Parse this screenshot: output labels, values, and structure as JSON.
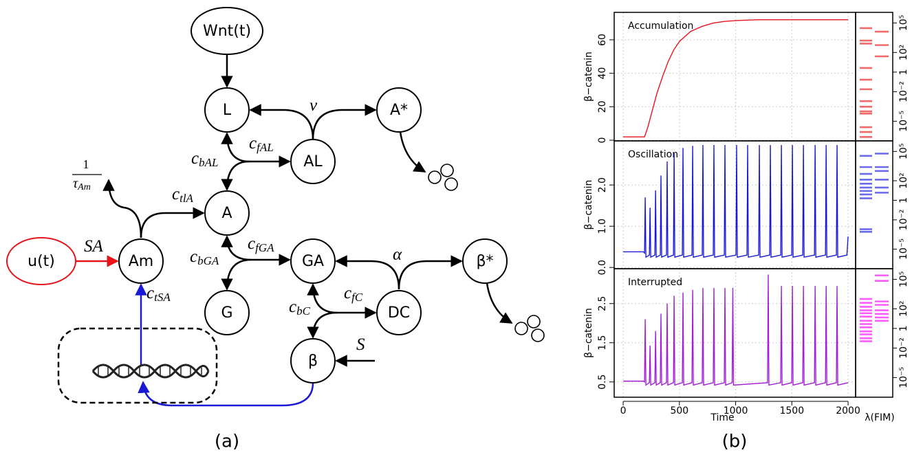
{
  "panels": [
    "(a)",
    "(b)"
  ],
  "diagram": {
    "nodes": [
      "Wnt(t)",
      "L",
      "A*",
      "AL",
      "A",
      "Am",
      "u(t)",
      "GA",
      "β*",
      "G",
      "DC",
      "β"
    ],
    "edge_labels": [
      {
        "symbol": "ν"
      },
      {
        "symbol": "c",
        "sub": "fAL"
      },
      {
        "symbol": "c",
        "sub": "bAL"
      },
      {
        "symbol": "c",
        "sub": "tlA"
      },
      {
        "symbol": "SA"
      },
      {
        "symbol": "c",
        "sub": "fGA"
      },
      {
        "symbol": "c",
        "sub": "bGA"
      },
      {
        "symbol": "α"
      },
      {
        "symbol": "c",
        "sub": "fC"
      },
      {
        "symbol": "c",
        "sub": "bC"
      },
      {
        "symbol": "c",
        "sub": "tSA"
      },
      {
        "symbol": "S"
      },
      {
        "numerator": "1",
        "symbol": "τ",
        "sub": "Am"
      }
    ]
  },
  "chart_data": [
    {
      "type": "line",
      "title": "Accumulation",
      "ylabel": "β−catenin",
      "color": "#e8141b",
      "grid": true,
      "xlim": [
        -80,
        2067
      ],
      "ylim": [
        -0.4,
        76.4
      ],
      "yticks": [
        0,
        20,
        40,
        60
      ],
      "x": [
        0,
        190,
        220,
        260,
        300,
        350,
        400,
        450,
        500,
        600,
        700,
        800,
        900,
        1000,
        1200,
        1500,
        2000
      ],
      "values": [
        2,
        2,
        8,
        18,
        28,
        38,
        47,
        54,
        59,
        65,
        68,
        70,
        71,
        71.5,
        72,
        72,
        72
      ],
      "fim": {
        "log": true,
        "color": "#f06a6a",
        "ylim": [
          1e-07,
          1200000
        ],
        "yticks": [
          {
            "value": 100000,
            "label": "10⁵"
          },
          {
            "value": 100,
            "label": "10²"
          },
          1,
          {
            "value": 0.01,
            "label": "10⁻²"
          },
          {
            "value": 1e-05,
            "label": "10⁻⁵"
          }
        ],
        "columns": [
          [
            30000,
            1600,
            800,
            2.6,
            0.17,
            0.018,
            0.0011,
            0.0003,
            0.0001,
            6e-05,
            2.5e-06,
            8e-07,
            2.5e-07
          ],
          [
            13000,
            560,
            40
          ]
        ]
      }
    },
    {
      "type": "line",
      "title": "Oscillation",
      "ylabel": "β−catenin",
      "color": "#1a1ad6",
      "grid": true,
      "xlim": [
        -80,
        2067
      ],
      "ylim": [
        -0.03,
        3.07
      ],
      "yticks": [
        {
          "value": 0,
          "label": "0.0"
        },
        {
          "value": 1,
          "label": "1.0"
        },
        {
          "value": 2,
          "label": "2.0"
        }
      ],
      "x": [
        0,
        180,
        190,
        196,
        202,
        233,
        239,
        245,
        282,
        288,
        294,
        330,
        336,
        342,
        385,
        391,
        397,
        447,
        453,
        459,
        526,
        532,
        538,
        612,
        618,
        624,
        703,
        709,
        715,
        801,
        807,
        813,
        899,
        905,
        911,
        1003,
        1009,
        1015,
        1101,
        1107,
        1113,
        1205,
        1211,
        1217,
        1303,
        1309,
        1315,
        1401,
        1407,
        1413,
        1499,
        1505,
        1511,
        1597,
        1603,
        1609,
        1701,
        1707,
        1713,
        1799,
        1805,
        1811,
        1896,
        1902,
        1908,
        1990,
        2000
      ],
      "values": [
        0.38,
        0.38,
        0.35,
        1.7,
        0.25,
        0.3,
        1.45,
        0.25,
        0.3,
        1.87,
        0.25,
        0.3,
        2.23,
        0.25,
        0.3,
        2.57,
        0.25,
        0.3,
        2.77,
        0.25,
        0.3,
        2.9,
        0.25,
        0.3,
        2.95,
        0.25,
        0.3,
        2.97,
        0.25,
        0.3,
        2.97,
        0.25,
        0.3,
        2.97,
        0.25,
        0.3,
        2.97,
        0.25,
        0.3,
        2.97,
        0.25,
        0.3,
        2.97,
        0.25,
        0.3,
        2.97,
        0.25,
        0.3,
        2.97,
        0.25,
        0.3,
        2.97,
        0.25,
        0.3,
        2.97,
        0.25,
        0.3,
        2.97,
        0.25,
        0.3,
        2.97,
        0.25,
        0.3,
        2.97,
        0.25,
        0.3,
        0.75
      ],
      "fim": {
        "log": true,
        "color": "#6a6aef",
        "ylim": [
          1e-07,
          1200000
        ],
        "yticks": [
          {
            "value": 100000,
            "label": "10⁵"
          },
          {
            "value": 100,
            "label": "10²"
          },
          1,
          {
            "value": 0.01,
            "label": "10⁻²"
          },
          {
            "value": 1e-05,
            "label": "10⁻⁵"
          }
        ],
        "columns": [
          [
            35000,
            2500,
            500,
            130,
            50,
            20,
            9,
            4,
            1.6,
            0.0011,
            0.0006
          ],
          [
            60000,
            2500,
            1000,
            130,
            20,
            6
          ]
        ]
      }
    },
    {
      "type": "line",
      "title": "Interrupted",
      "ylabel": "β−catenin",
      "color": "#a21fd6",
      "grid": true,
      "xlim": [
        -80,
        2067
      ],
      "ylim": [
        0.11,
        3.39
      ],
      "yticks": [
        0.5,
        1.5,
        2.5
      ],
      "xticks": [
        0,
        500,
        1000,
        1500,
        2000
      ],
      "xlabel": "Time",
      "x": [
        0,
        180,
        190,
        196,
        202,
        233,
        239,
        245,
        282,
        288,
        294,
        330,
        336,
        342,
        385,
        391,
        397,
        447,
        453,
        459,
        526,
        532,
        538,
        612,
        618,
        624,
        703,
        709,
        715,
        801,
        807,
        813,
        899,
        905,
        911,
        969,
        975,
        981,
        1284,
        1290,
        1296,
        1401,
        1407,
        1413,
        1499,
        1505,
        1511,
        1597,
        1603,
        1609,
        1701,
        1707,
        1713,
        1799,
        1805,
        1811,
        1896,
        1902,
        1908,
        2000
      ],
      "values": [
        0.52,
        0.52,
        0.5,
        2.1,
        0.42,
        0.48,
        1.43,
        0.42,
        0.48,
        1.8,
        0.42,
        0.48,
        2.24,
        0.42,
        0.48,
        2.5,
        0.42,
        0.48,
        2.7,
        0.42,
        0.48,
        2.78,
        0.42,
        0.48,
        2.85,
        0.42,
        0.48,
        2.9,
        0.42,
        0.48,
        2.9,
        0.42,
        0.48,
        2.9,
        0.42,
        0.48,
        2.9,
        0.42,
        0.48,
        3.24,
        0.42,
        0.48,
        2.95,
        0.42,
        0.48,
        2.95,
        0.42,
        0.48,
        2.95,
        0.42,
        0.48,
        2.95,
        0.42,
        0.48,
        2.95,
        0.42,
        0.48,
        2.95,
        0.42,
        0.48
      ],
      "fim": {
        "log": true,
        "color": "#ff5cff",
        "xlabel": "λ(FIM)",
        "ylim": [
          1e-07,
          1200000
        ],
        "yticks": [
          {
            "value": 100000,
            "label": "10⁵"
          },
          {
            "value": 100,
            "label": "10²"
          },
          1,
          {
            "value": 0.01,
            "label": "10⁻²"
          },
          {
            "value": 1e-05,
            "label": "10⁻⁵"
          }
        ],
        "columns": [
          [
            1000,
            400,
            160,
            70,
            35,
            16,
            6,
            2.8,
            1.3,
            0.5,
            0.25,
            0.1,
            0.05
          ],
          [
            250000,
            70000,
            560,
            250,
            70,
            30,
            13,
            6
          ]
        ]
      }
    }
  ]
}
